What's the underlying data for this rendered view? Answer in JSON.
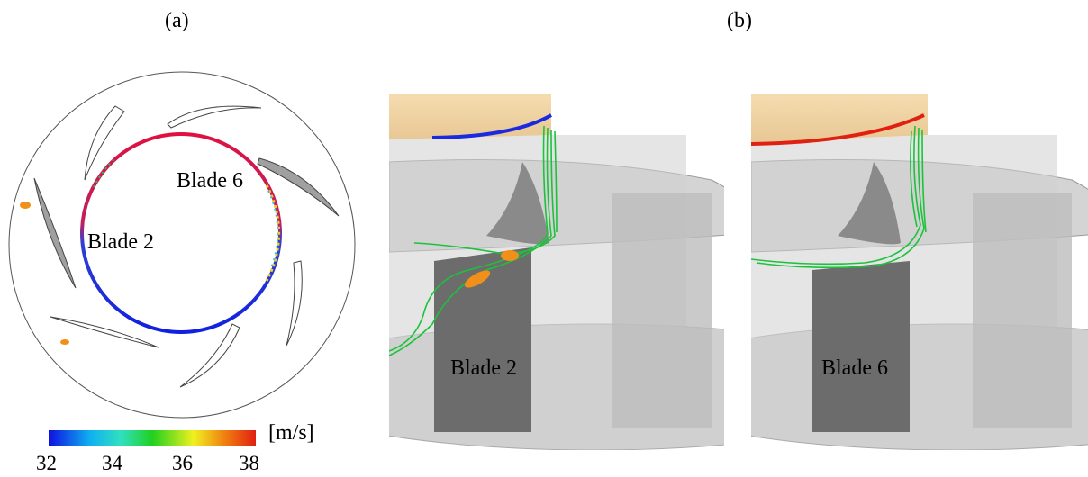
{
  "panels": {
    "a": {
      "label": "(a)"
    },
    "b": {
      "label": "(b)"
    }
  },
  "panel_a": {
    "blade2_label": "Blade 2",
    "blade6_label": "Blade 6"
  },
  "panel_b": {
    "left_label": "Blade 2",
    "right_label": "Blade 6"
  },
  "colorbar": {
    "unit": "[m/s]",
    "ticks": [
      "32",
      "34",
      "36",
      "38"
    ],
    "min": 32,
    "max": 38,
    "colors": [
      "#1010e0",
      "#10b0f0",
      "#30e0c0",
      "#20d020",
      "#f0f020",
      "#f08010",
      "#e02010"
    ]
  }
}
